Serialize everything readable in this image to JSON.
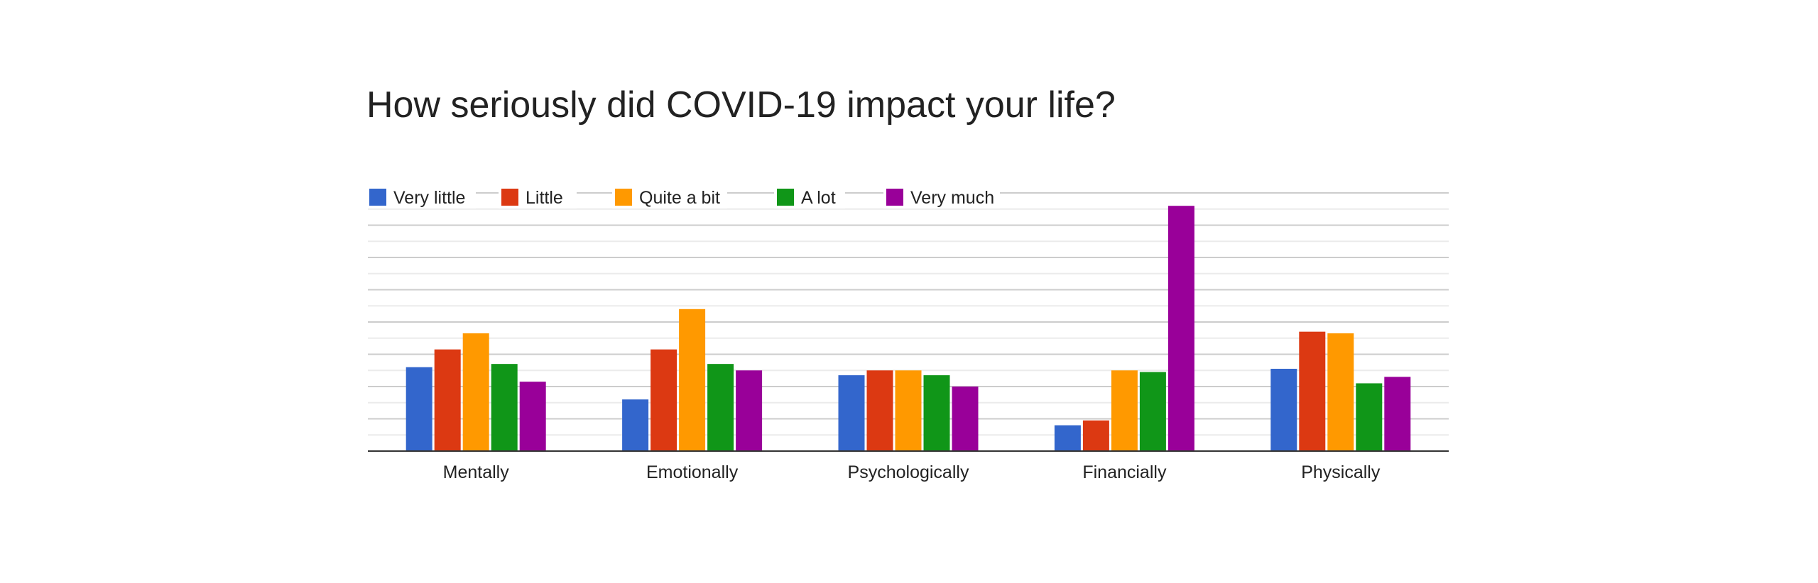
{
  "chart_data": {
    "type": "bar",
    "title": "How seriously did COVID-19 impact your life?",
    "xlabel": "",
    "ylabel": "",
    "legend_position": "top-left",
    "grid": true,
    "ylim": [
      0,
      8
    ],
    "categories": [
      "Mentally",
      "Emotionally",
      "Psychologically",
      "Financially",
      "Physically"
    ],
    "series": [
      {
        "name": "Very little",
        "color": "#3366cc",
        "values": [
          2.6,
          1.6,
          2.35,
          0.8,
          2.55
        ]
      },
      {
        "name": "Little",
        "color": "#dc3912",
        "values": [
          3.15,
          3.15,
          2.5,
          0.95,
          3.7
        ]
      },
      {
        "name": "Quite a bit",
        "color": "#ff9900",
        "values": [
          3.65,
          4.4,
          2.5,
          2.5,
          3.65
        ]
      },
      {
        "name": "A lot",
        "color": "#109618",
        "values": [
          2.7,
          2.7,
          2.35,
          2.45,
          2.1
        ]
      },
      {
        "name": "Very much",
        "color": "#990099",
        "values": [
          2.15,
          2.5,
          2.0,
          7.6,
          2.3
        ]
      }
    ]
  }
}
